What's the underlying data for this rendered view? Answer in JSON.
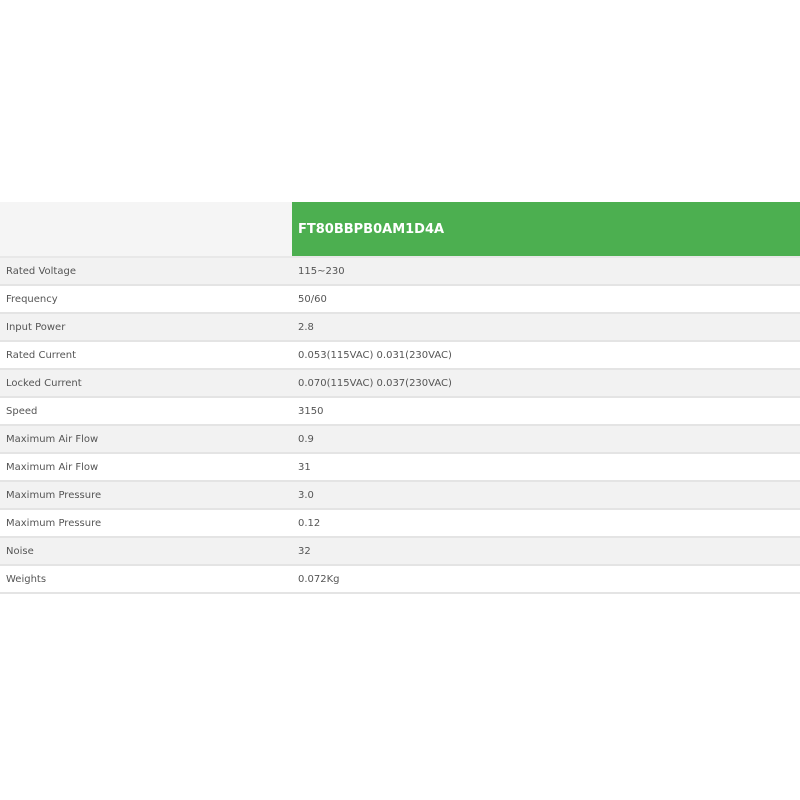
{
  "table": {
    "header_model": "FT80BBPB0AM1D4A",
    "accent_color": "#4caf50",
    "rows": [
      {
        "label": "Rated Voltage",
        "value": "115~230"
      },
      {
        "label": "Frequency",
        "value": "50/60"
      },
      {
        "label": "Input Power",
        "value": "2.8"
      },
      {
        "label": "Rated Current",
        "value": "0.053(115VAC) 0.031(230VAC)"
      },
      {
        "label": "Locked Current",
        "value": "0.070(115VAC) 0.037(230VAC)"
      },
      {
        "label": "Speed",
        "value": "3150"
      },
      {
        "label": "Maximum Air Flow",
        "value": "0.9"
      },
      {
        "label": "Maximum Air Flow",
        "value": "31"
      },
      {
        "label": "Maximum Pressure",
        "value": "3.0"
      },
      {
        "label": "Maximum Pressure",
        "value": "0.12"
      },
      {
        "label": "Noise",
        "value": "32"
      },
      {
        "label": "Weights",
        "value": "0.072Kg"
      }
    ]
  }
}
